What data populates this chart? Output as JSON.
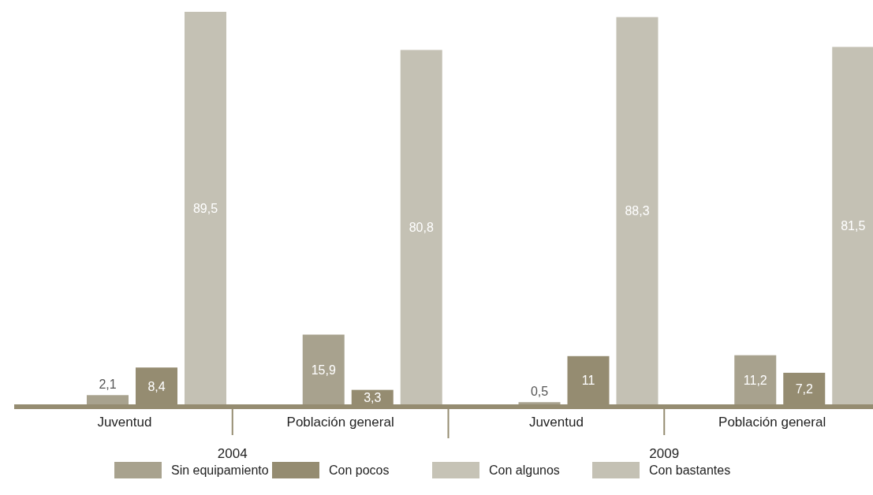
{
  "chart_data": {
    "type": "bar",
    "categories": [
      "Juventud",
      "Población general",
      "Juventud",
      "Población general"
    ],
    "annotations": [
      "2004",
      "2009"
    ],
    "series": [
      {
        "name": "Sin equipamiento",
        "color": "#a8a28e",
        "values": [
          2.1,
          15.9,
          0.5,
          11.2
        ],
        "value_labels": [
          "2,1",
          "15,9",
          "0,5",
          "11,2"
        ]
      },
      {
        "name": "Con pocos",
        "color": "#958c71",
        "values": [
          8.4,
          3.3,
          11,
          7.2
        ],
        "value_labels": [
          "8,4",
          "3,3",
          "11",
          "7,2"
        ]
      },
      {
        "name": "Con algunos",
        "color": "#c6c3b6",
        "values": [
          null,
          null,
          null,
          null
        ]
      },
      {
        "name": "Con bastantes",
        "color": "#c4c1b4",
        "values": [
          89.5,
          80.8,
          88.3,
          81.5
        ],
        "value_labels": [
          "89,5",
          "80,8",
          "88,3",
          "81,5"
        ]
      }
    ],
    "legend": "bottom"
  }
}
